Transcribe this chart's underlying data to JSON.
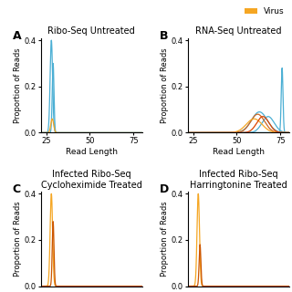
{
  "legend": {
    "label": "Virus",
    "color": "#f5a623"
  },
  "host_color": "#4bafd4",
  "virus_color": "#f5a623",
  "orange_dark": "#cc5500",
  "bg_color": "#ffffff",
  "panels": {
    "A": {
      "title": "Ribo-Seq Untreated",
      "label": "A",
      "xlim": [
        22,
        80
      ],
      "ylim": [
        0,
        0.41
      ],
      "yticks": [
        0.0,
        0.2,
        0.4
      ],
      "xticks": [
        25,
        50,
        75
      ],
      "xlabel": "Read Length",
      "ylabel": "Proportion of Reads",
      "curves": [
        {
          "color": "#4bafd4",
          "peak_x": 28,
          "peak_y": 0.4,
          "sigma": 0.7
        },
        {
          "color": "#4bafd4",
          "peak_x": 29,
          "peak_y": 0.3,
          "sigma": 0.5
        },
        {
          "color": "#f5a623",
          "peak_x": 28.5,
          "peak_y": 0.06,
          "sigma": 0.8
        }
      ]
    },
    "B": {
      "title": "RNA-Seq Untreated",
      "label": "B",
      "xlim": [
        22,
        80
      ],
      "ylim": [
        0,
        0.41
      ],
      "yticks": [
        0.0,
        0.2,
        0.4
      ],
      "xticks": [
        25,
        50,
        75
      ],
      "xlabel": "Read Length",
      "ylabel": "Proportion of Reads",
      "curves": [
        {
          "color": "#4bafd4",
          "peak_x": 76,
          "peak_y": 0.28,
          "sigma": 0.5
        },
        {
          "color": "#4bafd4",
          "peak_x": 63,
          "peak_y": 0.09,
          "sigma": 4.5
        },
        {
          "color": "#4bafd4",
          "peak_x": 68,
          "peak_y": 0.07,
          "sigma": 3.5
        },
        {
          "color": "#cc6622",
          "peak_x": 62,
          "peak_y": 0.08,
          "sigma": 4.0
        },
        {
          "color": "#f5a623",
          "peak_x": 60,
          "peak_y": 0.06,
          "sigma": 4.5
        },
        {
          "color": "#dd4400",
          "peak_x": 65,
          "peak_y": 0.07,
          "sigma": 3.5
        }
      ]
    },
    "C": {
      "title": "Infected Ribo-Seq\nCycloheximide Treated",
      "label": "C",
      "xlim": [
        22,
        80
      ],
      "ylim": [
        0,
        0.41
      ],
      "yticks": [
        0.0,
        0.2,
        0.4
      ],
      "xticks": [],
      "xlabel": "",
      "ylabel": "Proportion of Reads",
      "curves": [
        {
          "color": "#f5a623",
          "peak_x": 28,
          "peak_y": 0.4,
          "sigma": 0.7
        },
        {
          "color": "#cc5500",
          "peak_x": 29,
          "peak_y": 0.28,
          "sigma": 0.5
        }
      ]
    },
    "D": {
      "title": "Infected Ribo-Seq\nHarringtonine Treated",
      "label": "D",
      "xlim": [
        22,
        80
      ],
      "ylim": [
        0,
        0.41
      ],
      "yticks": [
        0.0,
        0.2,
        0.4
      ],
      "xticks": [],
      "xlabel": "",
      "ylabel": "Proportion of Reads",
      "curves": [
        {
          "color": "#f5a623",
          "peak_x": 28,
          "peak_y": 0.4,
          "sigma": 0.7
        },
        {
          "color": "#cc5500",
          "peak_x": 29,
          "peak_y": 0.18,
          "sigma": 0.5
        }
      ]
    }
  }
}
